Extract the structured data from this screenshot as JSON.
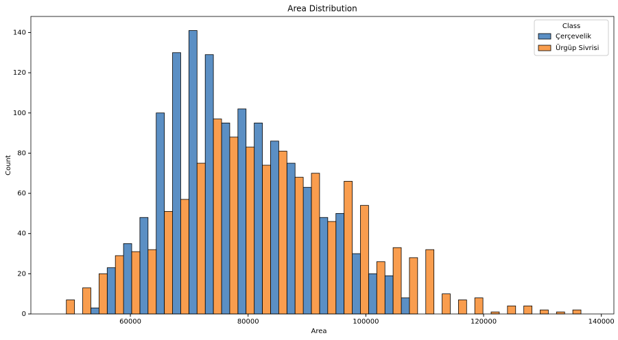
{
  "chart_data": {
    "type": "histogram",
    "title": "Area Distribution",
    "x_label": "Area",
    "y_label": "Count",
    "bins": [
      47740,
      50515,
      53290,
      56065,
      58840,
      61615,
      64390,
      67165,
      69940,
      72715,
      75490,
      78265,
      81040,
      83815,
      86590,
      89365,
      92140,
      94915,
      97690,
      100465,
      103240,
      106015,
      108790,
      111565,
      114340,
      117115,
      119890,
      122665,
      125440,
      128215,
      130990,
      133765,
      136540
    ],
    "series": [
      {
        "name": "Çerçevelik",
        "color": "#5b8fc4",
        "values": [
          0,
          0,
          3,
          23,
          35,
          48,
          100,
          130,
          141,
          129,
          95,
          102,
          95,
          86,
          75,
          63,
          48,
          50,
          30,
          20,
          19,
          8,
          0,
          0,
          0,
          0,
          0,
          0,
          0,
          0,
          0,
          0
        ]
      },
      {
        "name": "Ürgüp Sivrisi",
        "color": "#f99d4e",
        "values": [
          7,
          13,
          20,
          29,
          31,
          32,
          51,
          57,
          75,
          97,
          88,
          83,
          74,
          81,
          68,
          70,
          46,
          66,
          54,
          26,
          33,
          28,
          32,
          10,
          7,
          8,
          1,
          4,
          4,
          2,
          1,
          2
        ]
      }
    ],
    "legend_title": "Class",
    "legend": "upper right",
    "xlim": [
      43100,
      142130
    ],
    "xticks": [
      60000,
      80000,
      100000,
      120000,
      140000
    ],
    "ylim": [
      0,
      148
    ],
    "yticks": [
      0,
      20,
      40,
      60,
      80,
      100,
      120,
      140
    ]
  }
}
